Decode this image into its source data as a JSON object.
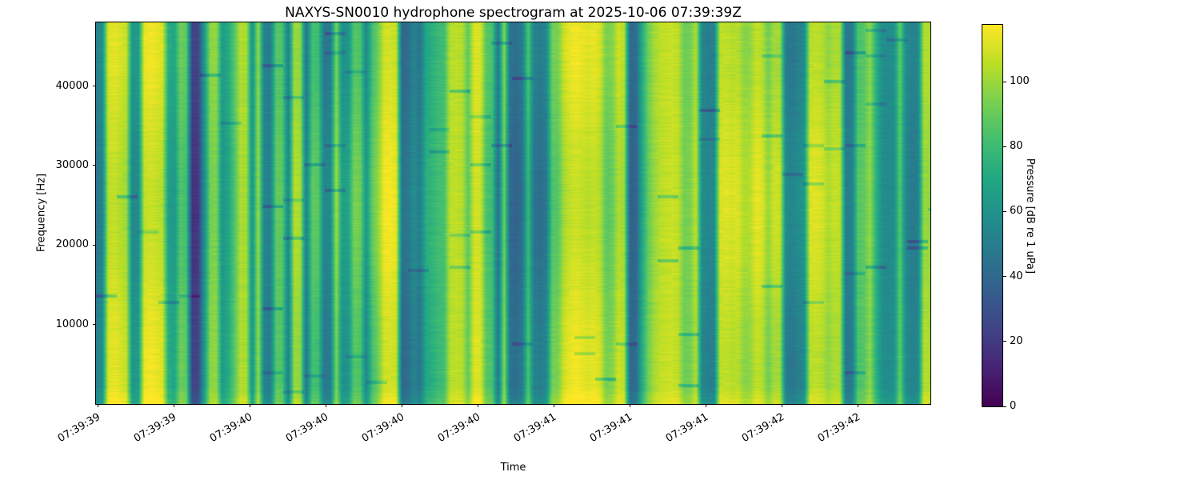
{
  "chart_data": {
    "type": "heatmap",
    "title": "NAXYS-SN0010 hydrophone spectrogram at 2025-10-06 07:39:39Z",
    "xlabel": "Time",
    "ylabel": "Frequency [Hz]",
    "colorbar_label": "Pressure [dB re 1 uPa]",
    "x_tick_labels": [
      "07:39:39",
      "07:39:39",
      "07:39:40",
      "07:39:40",
      "07:39:40",
      "07:39:40",
      "07:39:41",
      "07:39:41",
      "07:39:41",
      "07:39:42",
      "07:39:42"
    ],
    "y_ticks": [
      10000,
      20000,
      30000,
      40000
    ],
    "y_tick_labels": [
      "10000",
      "20000",
      "30000",
      "40000"
    ],
    "ylim": [
      0,
      48000
    ],
    "colorbar_ticks": [
      0,
      20,
      40,
      60,
      80,
      100
    ],
    "clim": [
      0,
      117.5
    ],
    "grid": false,
    "colormap": "viridis",
    "colormap_stops": [
      [
        0.0,
        "#440154"
      ],
      [
        0.1,
        "#482475"
      ],
      [
        0.2,
        "#414487"
      ],
      [
        0.3,
        "#355f8d"
      ],
      [
        0.4,
        "#2a788e"
      ],
      [
        0.5,
        "#21918c"
      ],
      [
        0.6,
        "#22a884"
      ],
      [
        0.7,
        "#44bf70"
      ],
      [
        0.8,
        "#7ad151"
      ],
      [
        0.9,
        "#bddf26"
      ],
      [
        1.0,
        "#fde725"
      ]
    ],
    "columns_db": [
      48,
      55,
      108,
      110,
      107,
      104,
      58,
      60,
      110,
      112,
      110,
      108,
      70,
      65,
      88,
      85,
      20,
      22,
      60,
      95,
      96,
      62,
      70,
      85,
      103,
      102,
      60,
      100,
      52,
      50,
      88,
      86,
      52,
      102,
      100,
      48,
      85,
      84,
      50,
      52,
      98,
      62,
      64,
      90,
      88,
      58,
      85,
      95,
      112,
      113,
      110,
      42,
      45,
      55,
      48,
      72,
      75,
      80,
      82,
      105,
      106,
      104,
      88,
      110,
      110,
      85,
      82,
      45,
      95,
      42,
      40,
      45,
      82,
      48,
      46,
      50,
      88,
      90,
      105,
      110,
      112,
      110,
      108,
      110,
      106,
      90,
      92,
      105,
      103,
      38,
      40,
      70,
      90,
      100,
      105,
      107,
      108,
      106,
      92,
      93,
      105,
      55,
      52,
      53,
      108,
      109,
      107,
      108,
      100,
      101,
      110,
      108,
      95,
      105,
      104,
      52,
      50,
      54,
      58,
      108,
      109,
      107,
      100,
      105,
      104,
      48,
      50,
      85,
      87,
      98,
      75,
      58,
      56,
      58,
      88,
      55,
      50,
      52,
      102,
      100
    ]
  }
}
